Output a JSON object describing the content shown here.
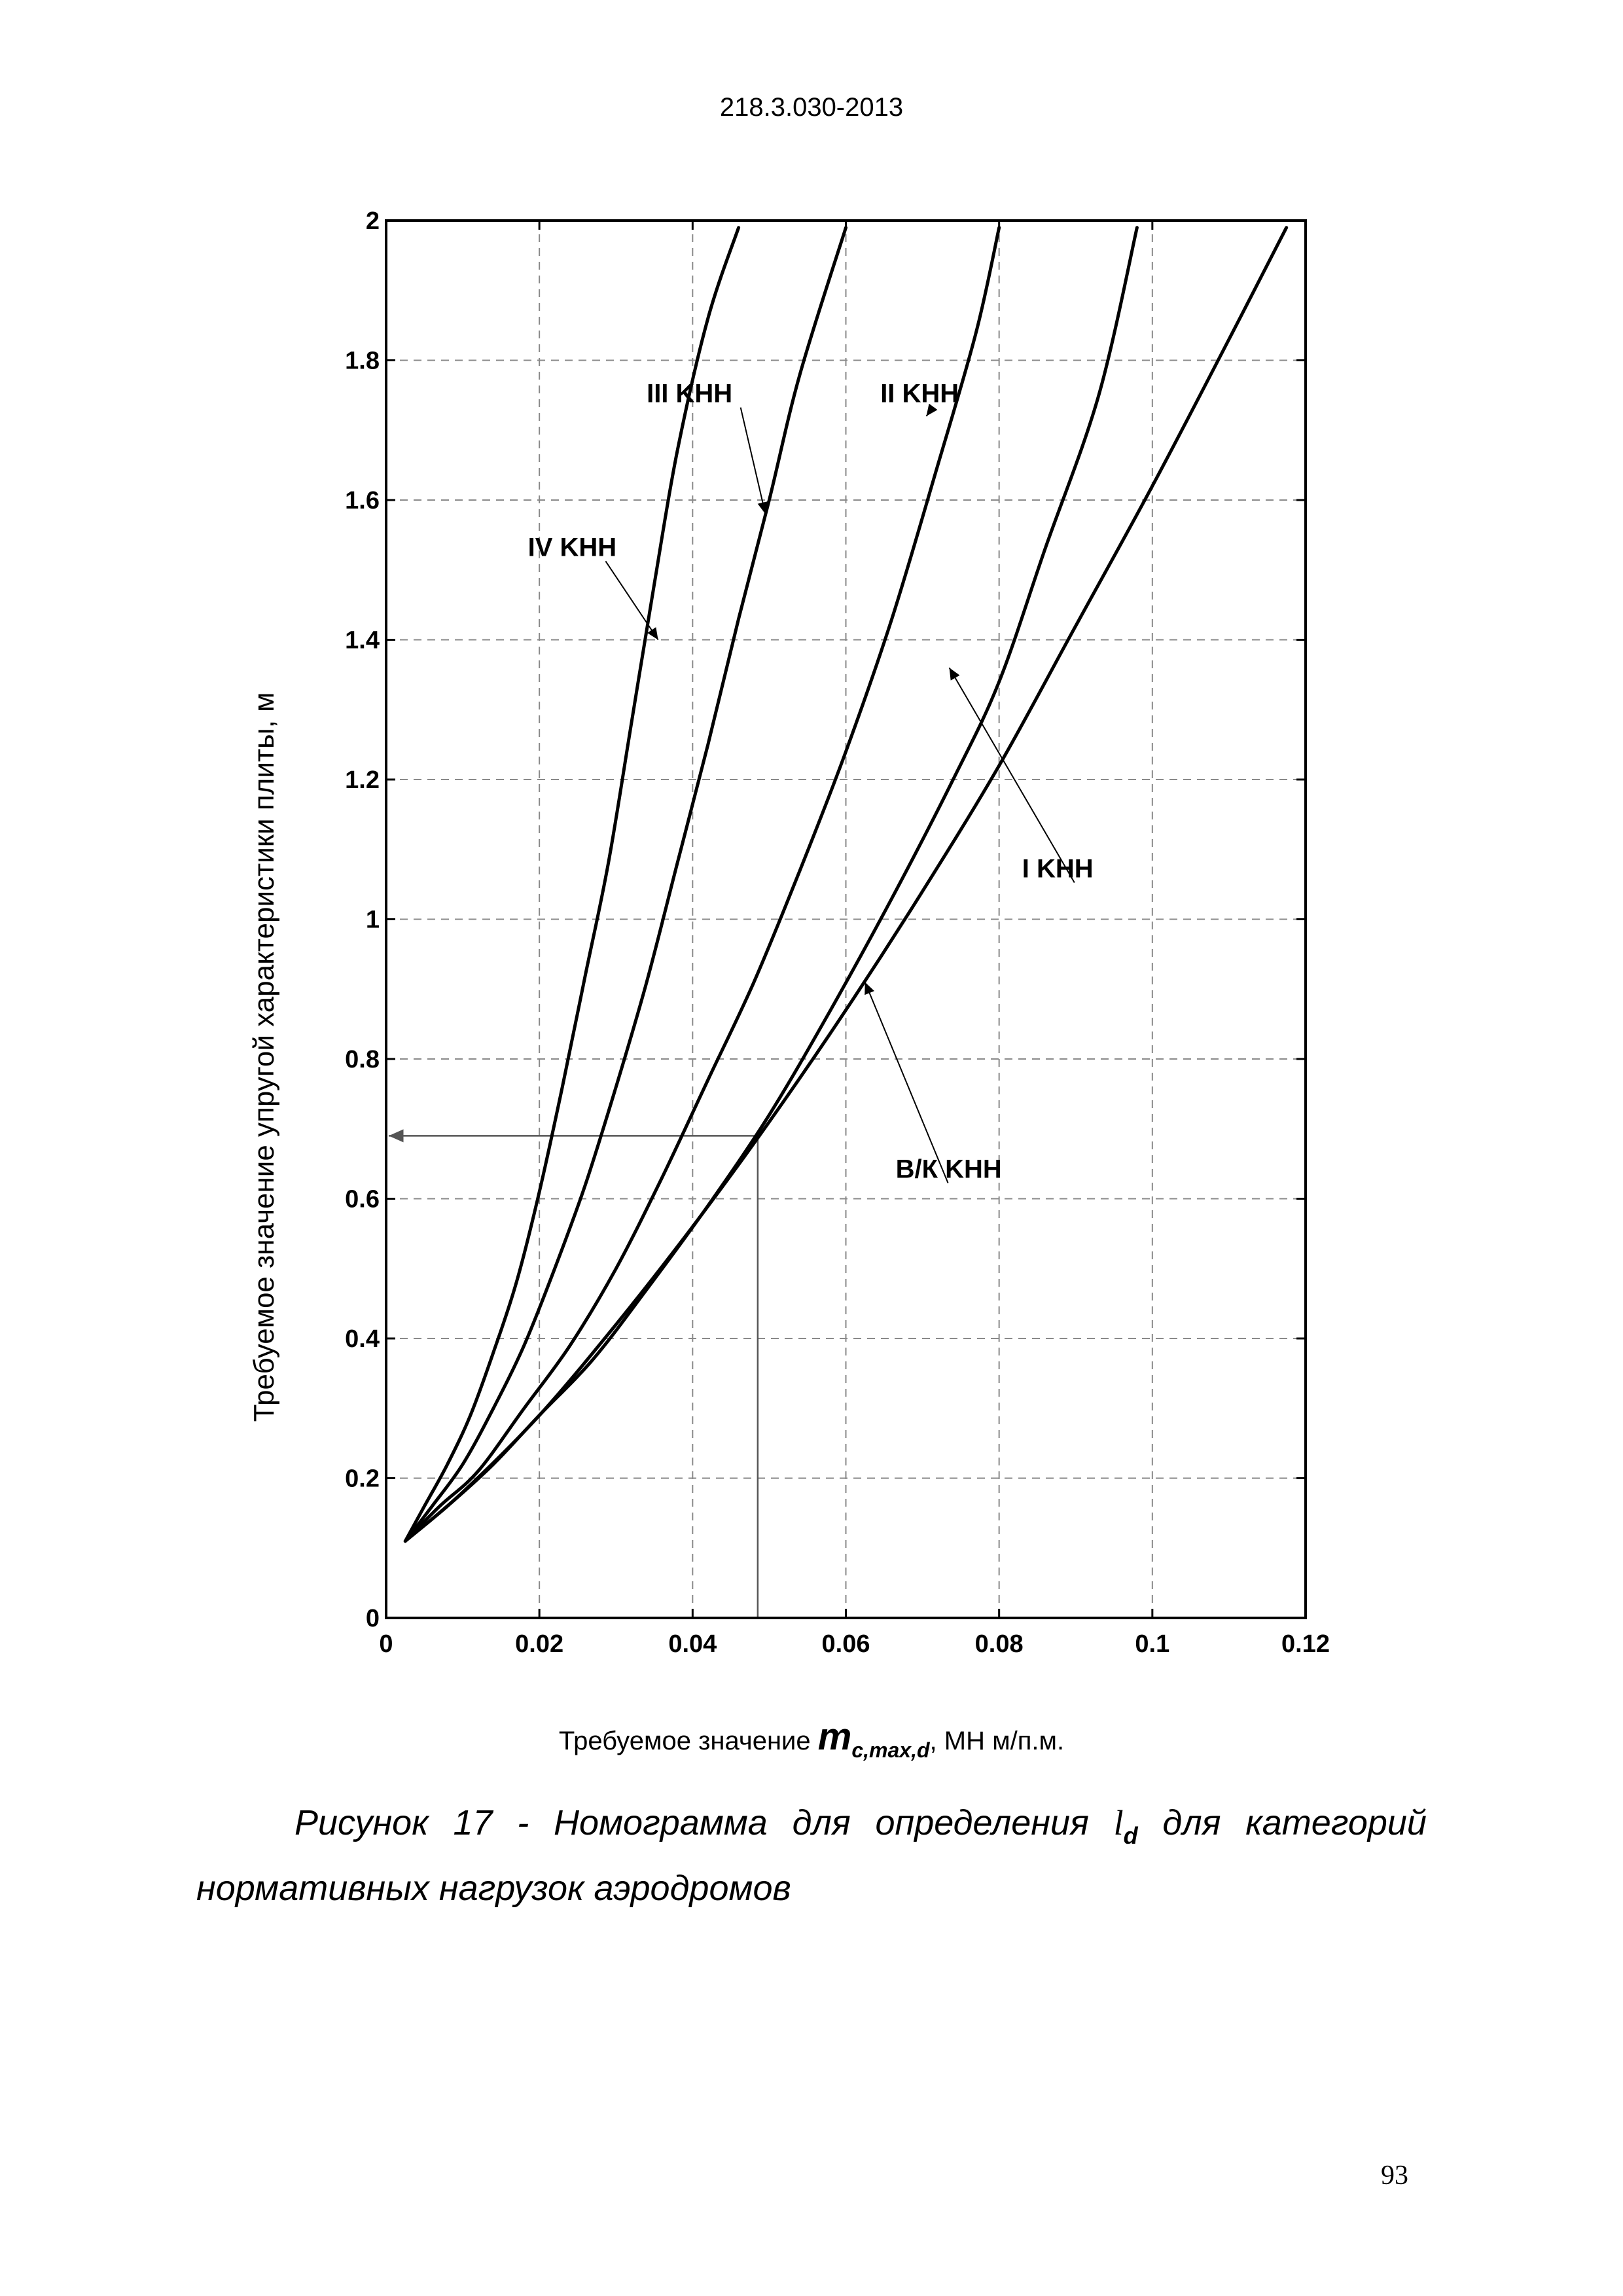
{
  "document": {
    "header": "218.3.030-2013",
    "page_number": "93",
    "caption": {
      "line1_prefix": "Рисунок 17 - Номограмма для определения",
      "symbol": "l",
      "symbol_sub": "d",
      "line1_suffix": "для категорий",
      "line2": "нормативных нагрузок аэродромов"
    },
    "x_title": {
      "prefix": "Требуемое значение",
      "symbol": "m",
      "symbol_sub": "c,max,d",
      "suffix": ", МН м/п.м."
    }
  },
  "chart_data": {
    "type": "line",
    "ylabel": "Требуемое значение упругой характеристики плиты, м",
    "xlim": [
      0,
      0.12
    ],
    "ylim": [
      0,
      2
    ],
    "x_ticks": [
      "0",
      "0.02",
      "0.04",
      "0.06",
      "0.08",
      "0.1",
      "0.12"
    ],
    "y_ticks": [
      "0",
      "0.2",
      "0.4",
      "0.6",
      "0.8",
      "1",
      "1.2",
      "1.4",
      "1.6",
      "1.8",
      "2"
    ],
    "grid": true,
    "series": [
      {
        "name": "IV KHH",
        "points": [
          [
            0.0025,
            0.11
          ],
          [
            0.005,
            0.16
          ],
          [
            0.008,
            0.22
          ],
          [
            0.011,
            0.29
          ],
          [
            0.014,
            0.38
          ],
          [
            0.017,
            0.48
          ],
          [
            0.02,
            0.61
          ],
          [
            0.023,
            0.76
          ],
          [
            0.026,
            0.92
          ],
          [
            0.029,
            1.08
          ],
          [
            0.032,
            1.28
          ],
          [
            0.035,
            1.48
          ],
          [
            0.038,
            1.67
          ],
          [
            0.042,
            1.86
          ],
          [
            0.046,
            1.99
          ]
        ]
      },
      {
        "name": "III KHH",
        "points": [
          [
            0.0025,
            0.11
          ],
          [
            0.006,
            0.16
          ],
          [
            0.01,
            0.22
          ],
          [
            0.014,
            0.3
          ],
          [
            0.018,
            0.39
          ],
          [
            0.022,
            0.5
          ],
          [
            0.026,
            0.62
          ],
          [
            0.03,
            0.76
          ],
          [
            0.034,
            0.91
          ],
          [
            0.038,
            1.08
          ],
          [
            0.042,
            1.25
          ],
          [
            0.046,
            1.43
          ],
          [
            0.05,
            1.6
          ],
          [
            0.054,
            1.78
          ],
          [
            0.06,
            1.99
          ]
        ]
      },
      {
        "name": "II KHH",
        "points": [
          [
            0.0025,
            0.11
          ],
          [
            0.007,
            0.16
          ],
          [
            0.012,
            0.21
          ],
          [
            0.018,
            0.3
          ],
          [
            0.024,
            0.39
          ],
          [
            0.03,
            0.5
          ],
          [
            0.036,
            0.63
          ],
          [
            0.042,
            0.77
          ],
          [
            0.048,
            0.91
          ],
          [
            0.054,
            1.07
          ],
          [
            0.06,
            1.24
          ],
          [
            0.066,
            1.43
          ],
          [
            0.072,
            1.65
          ],
          [
            0.077,
            1.84
          ],
          [
            0.08,
            1.99
          ]
        ]
      },
      {
        "name": "I KHH",
        "points": [
          [
            0.0025,
            0.11
          ],
          [
            0.008,
            0.16
          ],
          [
            0.014,
            0.22
          ],
          [
            0.02,
            0.29
          ],
          [
            0.027,
            0.37
          ],
          [
            0.034,
            0.47
          ],
          [
            0.042,
            0.59
          ],
          [
            0.05,
            0.72
          ],
          [
            0.058,
            0.87
          ],
          [
            0.066,
            1.03
          ],
          [
            0.074,
            1.2
          ],
          [
            0.08,
            1.34
          ],
          [
            0.086,
            1.53
          ],
          [
            0.093,
            1.75
          ],
          [
            0.098,
            1.99
          ]
        ]
      },
      {
        "name": "В/К KHH",
        "points": [
          [
            0.0025,
            0.11
          ],
          [
            0.01,
            0.18
          ],
          [
            0.02,
            0.29
          ],
          [
            0.03,
            0.42
          ],
          [
            0.04,
            0.56
          ],
          [
            0.05,
            0.71
          ],
          [
            0.06,
            0.87
          ],
          [
            0.07,
            1.04
          ],
          [
            0.08,
            1.22
          ],
          [
            0.09,
            1.42
          ],
          [
            0.1,
            1.62
          ],
          [
            0.11,
            1.83
          ],
          [
            0.1175,
            1.99
          ]
        ]
      }
    ],
    "annotations": [
      {
        "text": "III KHH",
        "at": [
          0.0495,
          1.58
        ],
        "label_at": [
          0.034,
          1.74
        ]
      },
      {
        "text": "II KHH",
        "at": [
          0.0705,
          1.72
        ],
        "label_at": [
          0.0645,
          1.74
        ]
      },
      {
        "text": "IV KHH",
        "at": [
          0.0355,
          1.4
        ],
        "label_at": [
          0.0185,
          1.52
        ]
      },
      {
        "text": "I KHH",
        "at": [
          0.0735,
          1.36
        ],
        "label_at": [
          0.083,
          1.06
        ]
      },
      {
        "text": "В/К KHH",
        "at": [
          0.0625,
          0.91
        ],
        "label_at": [
          0.0665,
          0.63
        ]
      }
    ],
    "example_lines": {
      "x": 0.0485,
      "y": 0.69
    }
  }
}
